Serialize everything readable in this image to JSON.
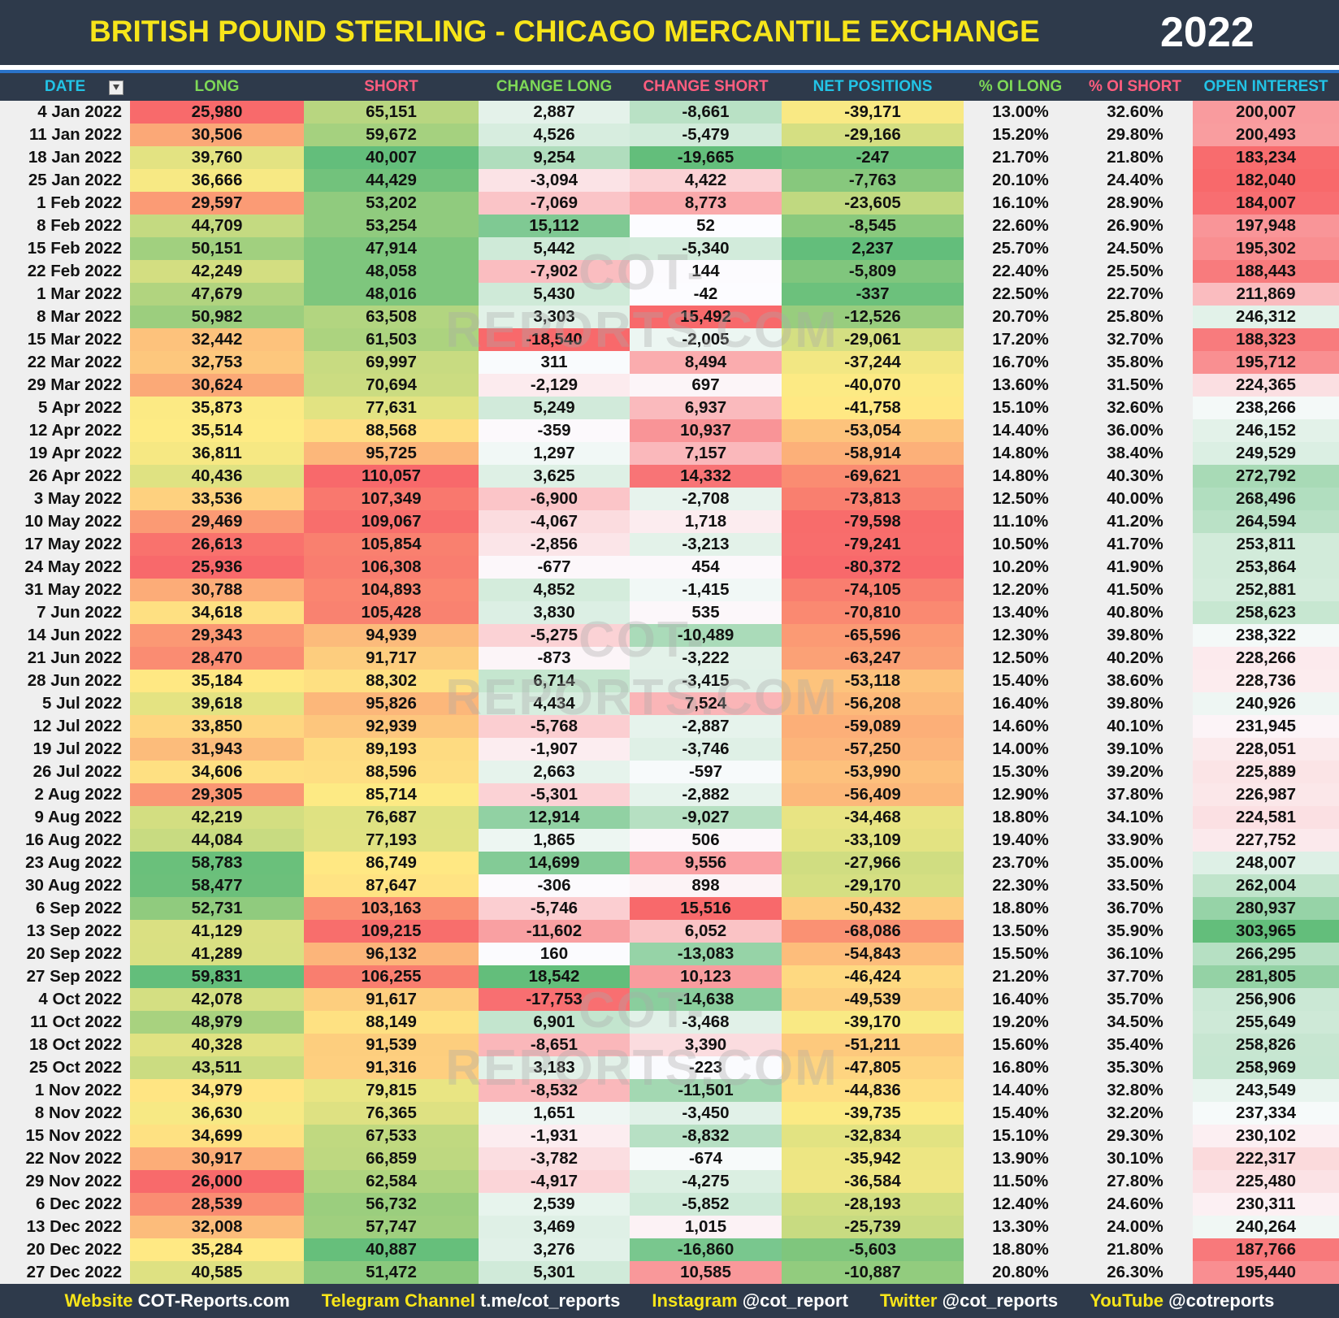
{
  "header": {
    "title": "BRITISH POUND STERLING - CHICAGO MERCANTILE EXCHANGE",
    "year": "2022"
  },
  "table": {
    "columns": [
      "DATE",
      "LONG",
      "SHORT",
      "CHANGE LONG",
      "CHANGE SHORT",
      "NET POSITIONS",
      "% OI LONG",
      "% OI SHORT",
      "OPEN INTEREST"
    ],
    "rows": [
      [
        "4 Jan 2022",
        "25,980",
        "65,151",
        "2,887",
        "-8,661",
        "-39,171",
        "13.00%",
        "32.60%",
        "200,007"
      ],
      [
        "11 Jan 2022",
        "30,506",
        "59,672",
        "4,526",
        "-5,479",
        "-29,166",
        "15.20%",
        "29.80%",
        "200,493"
      ],
      [
        "18 Jan 2022",
        "39,760",
        "40,007",
        "9,254",
        "-19,665",
        "-247",
        "21.70%",
        "21.80%",
        "183,234"
      ],
      [
        "25 Jan 2022",
        "36,666",
        "44,429",
        "-3,094",
        "4,422",
        "-7,763",
        "20.10%",
        "24.40%",
        "182,040"
      ],
      [
        "1 Feb 2022",
        "29,597",
        "53,202",
        "-7,069",
        "8,773",
        "-23,605",
        "16.10%",
        "28.90%",
        "184,007"
      ],
      [
        "8 Feb 2022",
        "44,709",
        "53,254",
        "15,112",
        "52",
        "-8,545",
        "22.60%",
        "26.90%",
        "197,948"
      ],
      [
        "15 Feb 2022",
        "50,151",
        "47,914",
        "5,442",
        "-5,340",
        "2,237",
        "25.70%",
        "24.50%",
        "195,302"
      ],
      [
        "22 Feb 2022",
        "42,249",
        "48,058",
        "-7,902",
        "144",
        "-5,809",
        "22.40%",
        "25.50%",
        "188,443"
      ],
      [
        "1 Mar 2022",
        "47,679",
        "48,016",
        "5,430",
        "-42",
        "-337",
        "22.50%",
        "22.70%",
        "211,869"
      ],
      [
        "8 Mar 2022",
        "50,982",
        "63,508",
        "3,303",
        "15,492",
        "-12,526",
        "20.70%",
        "25.80%",
        "246,312"
      ],
      [
        "15 Mar 2022",
        "32,442",
        "61,503",
        "-18,540",
        "-2,005",
        "-29,061",
        "17.20%",
        "32.70%",
        "188,323"
      ],
      [
        "22 Mar 2022",
        "32,753",
        "69,997",
        "311",
        "8,494",
        "-37,244",
        "16.70%",
        "35.80%",
        "195,712"
      ],
      [
        "29 Mar 2022",
        "30,624",
        "70,694",
        "-2,129",
        "697",
        "-40,070",
        "13.60%",
        "31.50%",
        "224,365"
      ],
      [
        "5 Apr 2022",
        "35,873",
        "77,631",
        "5,249",
        "6,937",
        "-41,758",
        "15.10%",
        "32.60%",
        "238,266"
      ],
      [
        "12 Apr 2022",
        "35,514",
        "88,568",
        "-359",
        "10,937",
        "-53,054",
        "14.40%",
        "36.00%",
        "246,152"
      ],
      [
        "19 Apr 2022",
        "36,811",
        "95,725",
        "1,297",
        "7,157",
        "-58,914",
        "14.80%",
        "38.40%",
        "249,529"
      ],
      [
        "26 Apr 2022",
        "40,436",
        "110,057",
        "3,625",
        "14,332",
        "-69,621",
        "14.80%",
        "40.30%",
        "272,792"
      ],
      [
        "3 May 2022",
        "33,536",
        "107,349",
        "-6,900",
        "-2,708",
        "-73,813",
        "12.50%",
        "40.00%",
        "268,496"
      ],
      [
        "10 May 2022",
        "29,469",
        "109,067",
        "-4,067",
        "1,718",
        "-79,598",
        "11.10%",
        "41.20%",
        "264,594"
      ],
      [
        "17 May 2022",
        "26,613",
        "105,854",
        "-2,856",
        "-3,213",
        "-79,241",
        "10.50%",
        "41.70%",
        "253,811"
      ],
      [
        "24 May 2022",
        "25,936",
        "106,308",
        "-677",
        "454",
        "-80,372",
        "10.20%",
        "41.90%",
        "253,864"
      ],
      [
        "31 May 2022",
        "30,788",
        "104,893",
        "4,852",
        "-1,415",
        "-74,105",
        "12.20%",
        "41.50%",
        "252,881"
      ],
      [
        "7 Jun 2022",
        "34,618",
        "105,428",
        "3,830",
        "535",
        "-70,810",
        "13.40%",
        "40.80%",
        "258,623"
      ],
      [
        "14 Jun 2022",
        "29,343",
        "94,939",
        "-5,275",
        "-10,489",
        "-65,596",
        "12.30%",
        "39.80%",
        "238,322"
      ],
      [
        "21 Jun 2022",
        "28,470",
        "91,717",
        "-873",
        "-3,222",
        "-63,247",
        "12.50%",
        "40.20%",
        "228,266"
      ],
      [
        "28 Jun 2022",
        "35,184",
        "88,302",
        "6,714",
        "-3,415",
        "-53,118",
        "15.40%",
        "38.60%",
        "228,736"
      ],
      [
        "5 Jul 2022",
        "39,618",
        "95,826",
        "4,434",
        "7,524",
        "-56,208",
        "16.40%",
        "39.80%",
        "240,926"
      ],
      [
        "12 Jul 2022",
        "33,850",
        "92,939",
        "-5,768",
        "-2,887",
        "-59,089",
        "14.60%",
        "40.10%",
        "231,945"
      ],
      [
        "19 Jul 2022",
        "31,943",
        "89,193",
        "-1,907",
        "-3,746",
        "-57,250",
        "14.00%",
        "39.10%",
        "228,051"
      ],
      [
        "26 Jul 2022",
        "34,606",
        "88,596",
        "2,663",
        "-597",
        "-53,990",
        "15.30%",
        "39.20%",
        "225,889"
      ],
      [
        "2 Aug 2022",
        "29,305",
        "85,714",
        "-5,301",
        "-2,882",
        "-56,409",
        "12.90%",
        "37.80%",
        "226,987"
      ],
      [
        "9 Aug 2022",
        "42,219",
        "76,687",
        "12,914",
        "-9,027",
        "-34,468",
        "18.80%",
        "34.10%",
        "224,581"
      ],
      [
        "16 Aug 2022",
        "44,084",
        "77,193",
        "1,865",
        "506",
        "-33,109",
        "19.40%",
        "33.90%",
        "227,752"
      ],
      [
        "23 Aug 2022",
        "58,783",
        "86,749",
        "14,699",
        "9,556",
        "-27,966",
        "23.70%",
        "35.00%",
        "248,007"
      ],
      [
        "30 Aug 2022",
        "58,477",
        "87,647",
        "-306",
        "898",
        "-29,170",
        "22.30%",
        "33.50%",
        "262,004"
      ],
      [
        "6 Sep 2022",
        "52,731",
        "103,163",
        "-5,746",
        "15,516",
        "-50,432",
        "18.80%",
        "36.70%",
        "280,937"
      ],
      [
        "13 Sep 2022",
        "41,129",
        "109,215",
        "-11,602",
        "6,052",
        "-68,086",
        "13.50%",
        "35.90%",
        "303,965"
      ],
      [
        "20 Sep 2022",
        "41,289",
        "96,132",
        "160",
        "-13,083",
        "-54,843",
        "15.50%",
        "36.10%",
        "266,295"
      ],
      [
        "27 Sep 2022",
        "59,831",
        "106,255",
        "18,542",
        "10,123",
        "-46,424",
        "21.20%",
        "37.70%",
        "281,805"
      ],
      [
        "4 Oct 2022",
        "42,078",
        "91,617",
        "-17,753",
        "-14,638",
        "-49,539",
        "16.40%",
        "35.70%",
        "256,906"
      ],
      [
        "11 Oct 2022",
        "48,979",
        "88,149",
        "6,901",
        "-3,468",
        "-39,170",
        "19.20%",
        "34.50%",
        "255,649"
      ],
      [
        "18 Oct 2022",
        "40,328",
        "91,539",
        "-8,651",
        "3,390",
        "-51,211",
        "15.60%",
        "35.40%",
        "258,826"
      ],
      [
        "25 Oct 2022",
        "43,511",
        "91,316",
        "3,183",
        "-223",
        "-47,805",
        "16.80%",
        "35.30%",
        "258,969"
      ],
      [
        "1 Nov 2022",
        "34,979",
        "79,815",
        "-8,532",
        "-11,501",
        "-44,836",
        "14.40%",
        "32.80%",
        "243,549"
      ],
      [
        "8 Nov 2022",
        "36,630",
        "76,365",
        "1,651",
        "-3,450",
        "-39,735",
        "15.40%",
        "32.20%",
        "237,334"
      ],
      [
        "15 Nov 2022",
        "34,699",
        "67,533",
        "-1,931",
        "-8,832",
        "-32,834",
        "15.10%",
        "29.30%",
        "230,102"
      ],
      [
        "22 Nov 2022",
        "30,917",
        "66,859",
        "-3,782",
        "-674",
        "-35,942",
        "13.90%",
        "30.10%",
        "222,317"
      ],
      [
        "29 Nov 2022",
        "26,000",
        "62,584",
        "-4,917",
        "-4,275",
        "-36,584",
        "11.50%",
        "27.80%",
        "225,480"
      ],
      [
        "6 Dec 2022",
        "28,539",
        "56,732",
        "2,539",
        "-5,852",
        "-28,193",
        "12.40%",
        "24.60%",
        "230,311"
      ],
      [
        "13 Dec 2022",
        "32,008",
        "57,747",
        "3,469",
        "1,015",
        "-25,739",
        "13.30%",
        "24.00%",
        "240,264"
      ],
      [
        "20 Dec 2022",
        "35,284",
        "40,887",
        "3,276",
        "-16,860",
        "-5,603",
        "18.80%",
        "21.80%",
        "187,766"
      ],
      [
        "27 Dec 2022",
        "40,585",
        "51,472",
        "5,301",
        "10,585",
        "-10,887",
        "20.80%",
        "26.30%",
        "195,440"
      ]
    ]
  },
  "watermark": "COT-REPORTS.COM",
  "footer": [
    {
      "label": "Website",
      "value": "COT-Reports.com"
    },
    {
      "label": "Telegram Channel",
      "value": "t.me/cot_reports"
    },
    {
      "label": "Instagram",
      "value": "@cot_report"
    },
    {
      "label": "Twitter",
      "value": "@cot_reports"
    },
    {
      "label": "YouTube",
      "value": "@cotreports"
    }
  ]
}
